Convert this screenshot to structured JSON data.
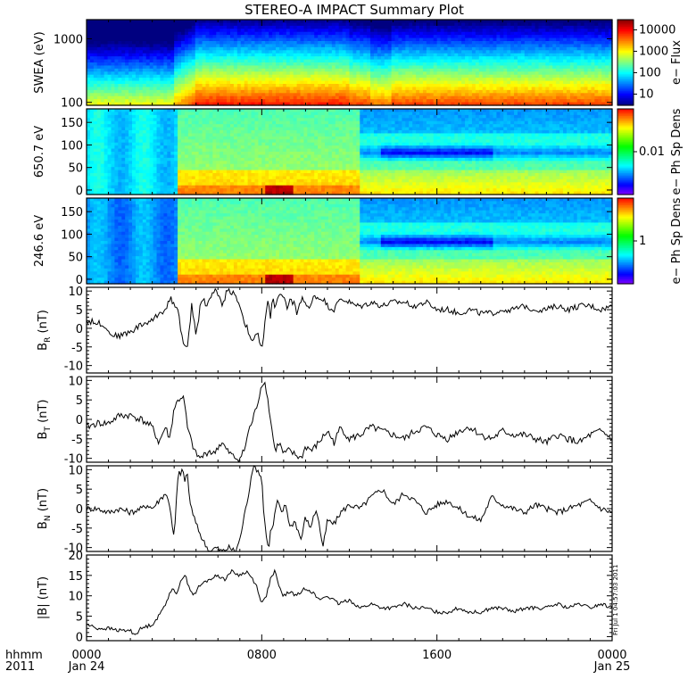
{
  "title": "STEREO-A IMPACT Summary Plot",
  "stamp": "Fri Jul  1 04:57:03 2011",
  "xaxis": {
    "format_label": "hhmm",
    "year_label": "2011",
    "range_hours": [
      0,
      24
    ],
    "ticks": [
      {
        "hour": 0,
        "time": "0000",
        "date": "Jan 24"
      },
      {
        "hour": 8,
        "time": "0800",
        "date": ""
      },
      {
        "hour": 16,
        "time": "1600",
        "date": ""
      },
      {
        "hour": 24,
        "time": "0000",
        "date": "Jan 25"
      }
    ]
  },
  "chart_data": [
    {
      "type": "heatmap",
      "id": "swea",
      "ylabel": "SWEA (eV)",
      "yscale": "log",
      "ylim": [
        90,
        2000
      ],
      "yticks": [
        {
          "v": 100,
          "t": "100"
        },
        {
          "v": 1000,
          "t": "1000"
        }
      ],
      "colorbar": {
        "label": "e− Flux",
        "scale": "log",
        "range": [
          3,
          30000
        ],
        "ticks": [
          {
            "v": 10,
            "t": "10"
          },
          {
            "v": 100,
            "t": "100"
          },
          {
            "v": 1000,
            "t": "1000"
          },
          {
            "v": 10000,
            "t": "10000"
          }
        ]
      }
    },
    {
      "type": "heatmap",
      "id": "pad650",
      "ylabel": "650.7 eV",
      "ylim": [
        -10,
        180
      ],
      "yticks": [
        {
          "v": 0,
          "t": "0"
        },
        {
          "v": 50,
          "t": "50"
        },
        {
          "v": 100,
          "t": "100"
        },
        {
          "v": 150,
          "t": "150"
        }
      ],
      "colorbar": {
        "label": "e− Ph Sp Dens",
        "scale": "log",
        "range": [
          0.001,
          0.1
        ],
        "ticks": [
          {
            "v": 0.01,
            "t": "0.01"
          }
        ]
      }
    },
    {
      "type": "heatmap",
      "id": "pad246",
      "ylabel": "246.6 eV",
      "ylim": [
        -10,
        180
      ],
      "yticks": [
        {
          "v": 0,
          "t": "0"
        },
        {
          "v": 50,
          "t": "50"
        },
        {
          "v": 100,
          "t": "100"
        },
        {
          "v": 150,
          "t": "150"
        }
      ],
      "colorbar": {
        "label": "e− Ph Sp Dens",
        "scale": "log",
        "range": [
          0.1,
          10
        ],
        "ticks": [
          {
            "v": 1,
            "t": "1"
          }
        ]
      }
    },
    {
      "type": "line",
      "id": "br",
      "ylabel_main": "B",
      "ylabel_sub": "R",
      "ylabel_unit": " (nT)",
      "ylim": [
        -12,
        11
      ],
      "yticks": [
        -10,
        -5,
        0,
        5,
        10
      ],
      "x": [
        0,
        0.5,
        0.8,
        1,
        1.3,
        1.5,
        2,
        2.5,
        3,
        3.3,
        3.6,
        3.8,
        4,
        4.2,
        4.4,
        4.6,
        4.7,
        4.8,
        4.9,
        5,
        5.1,
        5.2,
        5.3,
        5.5,
        5.7,
        5.8,
        5.9,
        6,
        6.2,
        6.4,
        6.6,
        6.8,
        7,
        7.2,
        7.4,
        7.6,
        7.8,
        8,
        8.1,
        8.2,
        8.3,
        8.4,
        8.5,
        8.6,
        8.8,
        9,
        9.2,
        9.3,
        9.4,
        9.5,
        9.6,
        9.8,
        10,
        10.2,
        10.4,
        10.6,
        10.8,
        11,
        11.3,
        11.6,
        12,
        12.3,
        12.6,
        13,
        13.5,
        14,
        14.5,
        15,
        15.5,
        16,
        16.5,
        17,
        17.5,
        18,
        18.5,
        19,
        19.5,
        20,
        20.5,
        21,
        21.5,
        22,
        22.5,
        23,
        23.5,
        24
      ],
      "y": [
        2,
        1.5,
        1,
        -1,
        -2,
        -2,
        -1,
        1,
        2,
        4,
        5,
        8,
        7,
        4,
        -4,
        -6,
        0,
        6,
        3,
        -2,
        2,
        7,
        8,
        6,
        9,
        10,
        10,
        9,
        6,
        10,
        10,
        9,
        6,
        2,
        -1,
        -4,
        -1,
        -6,
        -2,
        5,
        8,
        3,
        9,
        5,
        9,
        8,
        5,
        9,
        6,
        8,
        3,
        8,
        7,
        5,
        9,
        8,
        8,
        6,
        5,
        8,
        7,
        6,
        6,
        7,
        6,
        7,
        7,
        6,
        7,
        5,
        5,
        4,
        5,
        4,
        4,
        5,
        5,
        6,
        5,
        5,
        6,
        5,
        6,
        6,
        5,
        6
      ],
      "noise": 1.6
    },
    {
      "type": "line",
      "id": "bt",
      "ylabel_main": "B",
      "ylabel_sub": "T",
      "ylabel_unit": " (nT)",
      "ylim": [
        -11,
        11
      ],
      "yticks": [
        -10,
        -5,
        0,
        5,
        10
      ],
      "x": [
        0,
        0.5,
        1,
        1.5,
        2,
        2.5,
        3,
        3.3,
        3.6,
        3.8,
        4,
        4.2,
        4.4,
        4.5,
        4.6,
        4.8,
        5,
        5.2,
        5.4,
        5.6,
        5.8,
        6,
        6.2,
        6.4,
        6.6,
        6.8,
        7,
        7.2,
        7.4,
        7.6,
        7.8,
        8,
        8.1,
        8.2,
        8.3,
        8.4,
        8.5,
        8.6,
        8.8,
        9,
        9.2,
        9.5,
        9.8,
        10,
        10.3,
        10.6,
        11,
        11.3,
        11.6,
        12,
        12.5,
        13,
        13.5,
        14,
        14.5,
        15,
        15.5,
        16,
        16.5,
        17,
        17.5,
        18,
        18.5,
        19,
        19.5,
        20,
        20.5,
        21,
        21.5,
        22,
        22.5,
        23,
        23.5,
        24
      ],
      "y": [
        -2,
        -1,
        -1,
        1,
        1,
        0,
        -2,
        -6,
        -2,
        -5,
        3,
        5,
        6,
        3,
        -2,
        -6,
        -9,
        -10,
        -9,
        -8,
        -9,
        -7,
        -6,
        -8,
        -9,
        -10,
        -10,
        -8,
        -3,
        0,
        4,
        9,
        10,
        8,
        4,
        0,
        -4,
        -8,
        -6,
        -9,
        -8,
        -9,
        -10,
        -7,
        -8,
        -6,
        -3,
        -6,
        -2,
        -5,
        -4,
        -2,
        -3,
        -4,
        -5,
        -3,
        -2,
        -4,
        -5,
        -3,
        -2,
        -4,
        -5,
        -3,
        -4,
        -4,
        -5,
        -6,
        -4,
        -5,
        -6,
        -4,
        -3,
        -5
      ],
      "noise": 1.8
    },
    {
      "type": "line",
      "id": "bn",
      "ylabel_main": "B",
      "ylabel_sub": "N",
      "ylabel_unit": " (nT)",
      "ylim": [
        -11,
        11
      ],
      "yticks": [
        -10,
        -5,
        0,
        5,
        10
      ],
      "x": [
        0,
        0.5,
        1,
        1.5,
        2,
        2.5,
        2.8,
        3,
        3.3,
        3.6,
        3.8,
        4,
        4.1,
        4.2,
        4.3,
        4.4,
        4.5,
        4.6,
        4.7,
        4.8,
        5,
        5.3,
        5.6,
        5.9,
        6.2,
        6.5,
        6.8,
        7,
        7.2,
        7.4,
        7.6,
        7.8,
        8,
        8.1,
        8.2,
        8.3,
        8.4,
        8.5,
        8.7,
        8.9,
        9.1,
        9.3,
        9.5,
        9.8,
        10,
        10.2,
        10.5,
        10.8,
        11,
        11.3,
        11.6,
        12,
        12.5,
        13,
        13.5,
        14,
        14.5,
        15,
        15.5,
        16,
        16.5,
        17,
        17.5,
        18,
        18.5,
        19,
        19.5,
        20,
        20.5,
        21,
        21.5,
        22,
        22.5,
        23,
        23.5,
        24
      ],
      "y": [
        0,
        0,
        -1,
        0,
        -1,
        0,
        1,
        0,
        2,
        4,
        1,
        -8,
        2,
        10,
        8,
        11,
        6,
        10,
        2,
        0,
        -4,
        -8,
        -11,
        -10,
        -11,
        -10,
        -11,
        -8,
        -2,
        4,
        11,
        10,
        8,
        -2,
        -6,
        -11,
        -6,
        -5,
        2,
        -1,
        1,
        -5,
        -3,
        -8,
        -2,
        -5,
        0,
        -10,
        -3,
        -4,
        -1,
        1,
        0,
        3,
        5,
        1,
        4,
        2,
        -1,
        1,
        2,
        0,
        -2,
        -3,
        3,
        1,
        0,
        -1,
        1,
        0,
        -1,
        0,
        1,
        2,
        0,
        -1
      ],
      "noise": 1.5
    },
    {
      "type": "line",
      "id": "bmag",
      "ylabel_main": "|B|",
      "ylabel_sub": "",
      "ylabel_unit": " (nT)",
      "ylim": [
        -1,
        20
      ],
      "yticks": [
        0,
        5,
        10,
        15,
        20
      ],
      "x": [
        0,
        0.5,
        1,
        1.5,
        2,
        2.2,
        2.5,
        3,
        3.3,
        3.6,
        3.9,
        4.1,
        4.3,
        4.5,
        4.7,
        4.9,
        5.1,
        5.3,
        5.6,
        6,
        6.3,
        6.6,
        7,
        7.3,
        7.6,
        7.8,
        8,
        8.2,
        8.4,
        8.6,
        8.8,
        9,
        9.3,
        9.6,
        10,
        10.3,
        10.6,
        11,
        11.5,
        12,
        12.5,
        13,
        13.5,
        14,
        14.5,
        15,
        15.5,
        16,
        16.5,
        17,
        17.5,
        18,
        18.5,
        19,
        19.5,
        20,
        20.5,
        21,
        21.5,
        22,
        22.5,
        23,
        23.5,
        24
      ],
      "y": [
        3,
        2,
        2,
        1.5,
        1.5,
        0.5,
        2,
        3,
        5,
        8,
        12,
        10,
        14,
        15,
        12,
        10,
        12,
        13,
        14,
        15,
        14,
        16,
        15,
        16,
        14,
        12,
        8,
        10,
        14,
        16,
        12,
        10,
        11,
        10,
        12,
        11,
        9,
        10,
        8,
        9,
        7,
        8,
        7,
        7,
        8,
        7,
        7,
        6,
        6,
        7,
        6,
        6,
        7,
        7,
        6,
        7,
        7,
        7,
        8,
        7,
        8,
        7,
        8,
        7
      ],
      "noise": 0.9
    }
  ]
}
